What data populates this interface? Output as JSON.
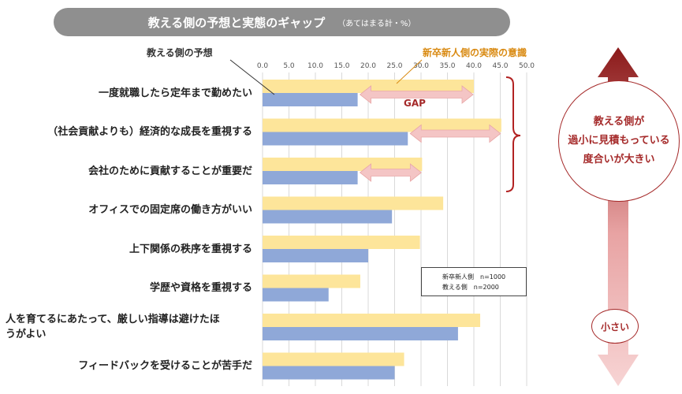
{
  "header": {
    "title": "教える側の予想と実態のギャップ",
    "subtitle": "（あてはまる計・%）"
  },
  "callouts": {
    "teacher_expectation": "教える側の予想",
    "newhire_actual": "新卒新人側の実際の意識",
    "gap": "GAP"
  },
  "legend": {
    "line1": "新卒新人側　n=1000",
    "line2": "教える側　n=2000"
  },
  "side": {
    "big_line1": "教える側が",
    "big_line2": "過小に見積もっている",
    "big_line3": "度合いが大きい",
    "small": "小さい"
  },
  "colors": {
    "newhire": "#fde59a",
    "teacher": "#8fa8d8",
    "accent": "#a52a2a",
    "gap_arrow": "#f4c5c5"
  },
  "chart_data": {
    "type": "bar",
    "orientation": "horizontal",
    "xlim": [
      0,
      50
    ],
    "ticks": [
      "0.0",
      "5.0",
      "10.0",
      "15.0",
      "20.0",
      "25.0",
      "30.0",
      "35.0",
      "40.0",
      "45.0",
      "50.0"
    ],
    "grid": true,
    "categories": [
      "一度就職したら定年まで勤めたい",
      "（社会貢献よりも）経済的な成長を重視する",
      "会社のために貢献することが重要だ",
      "オフィスでの固定席の働き方がいい",
      "上下関係の秩序を重視する",
      "学歴や資格を重視する",
      "人を育てるにあたって、厳しい指導は避けたほうがよい",
      "フィードバックを受けることが苦手だ"
    ],
    "category_lines": [
      [
        "一度就職したら定年まで勤めたい"
      ],
      [
        "（社会貢献よりも）経済的な成長を重視する"
      ],
      [
        "会社のために貢献することが重要だ"
      ],
      [
        "オフィスでの固定席の働き方がいい"
      ],
      [
        "上下関係の秩序を重視する"
      ],
      [
        "学歴や資格を重視する"
      ],
      [
        "人を育てるにあたって、厳しい指導は避けたほ",
        "うがよい"
      ],
      [
        "フィードバックを受けることが苦手だ"
      ]
    ],
    "series": [
      {
        "name": "新卒新人側",
        "values": [
          40.0,
          45.2,
          30.2,
          34.2,
          29.8,
          18.5,
          41.2,
          26.8
        ]
      },
      {
        "name": "教える側",
        "values": [
          18.0,
          27.5,
          18.0,
          24.5,
          20.0,
          12.5,
          37.0,
          25.0
        ]
      }
    ],
    "gap_categories": [
      0,
      1,
      2
    ]
  }
}
